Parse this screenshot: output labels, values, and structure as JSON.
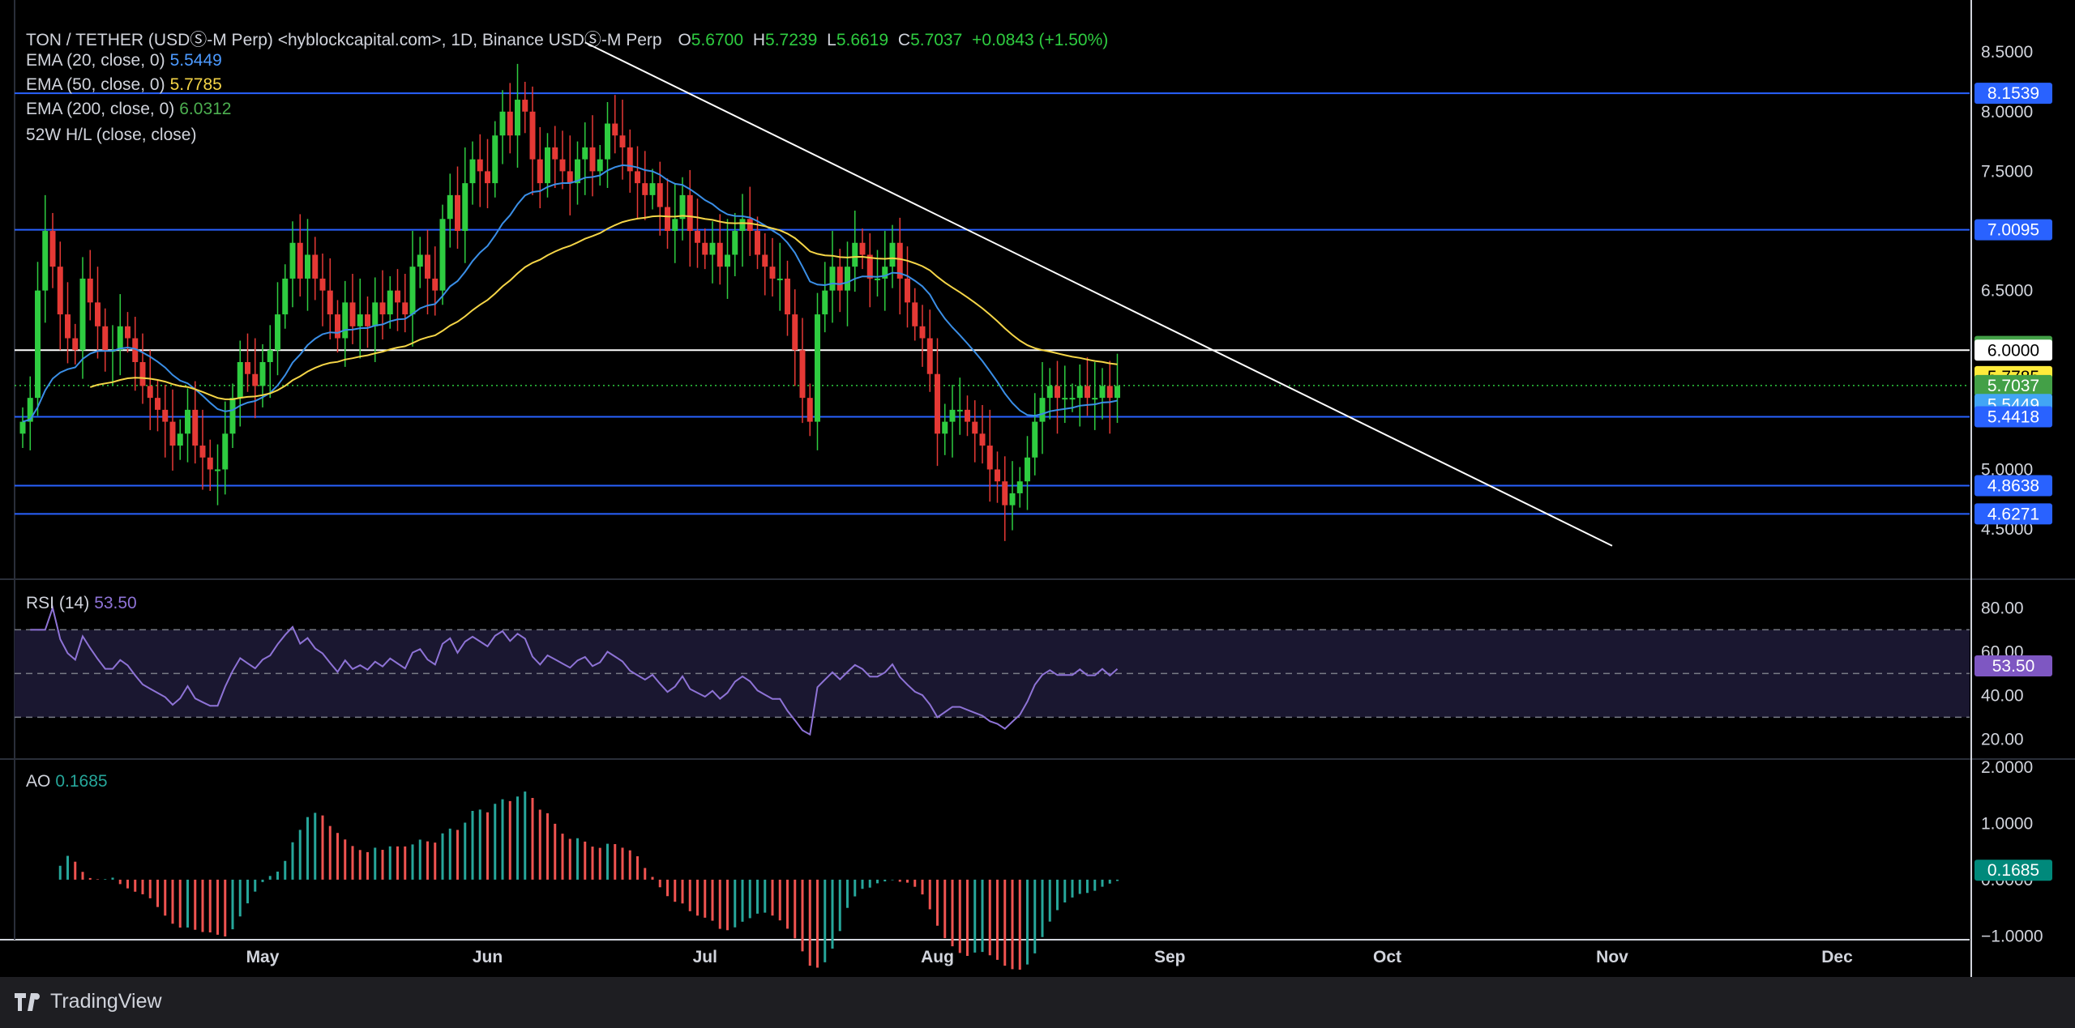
{
  "header": {
    "symbol": "TON / TETHER (USDⓈ-M Perp) <hyblockcapital.com>, 1D, Binance USDⓈ-M Perp",
    "o_label": "O",
    "o": "5.6700",
    "h_label": "H",
    "h": "5.7239",
    "l_label": "L",
    "l": "5.6619",
    "c_label": "C",
    "c": "5.7037",
    "change": "+0.0843 (+1.50%)"
  },
  "indicators": {
    "ema20": {
      "label": "EMA (20, close, 0)",
      "value": "5.5449",
      "color": "#4c9aff"
    },
    "ema50": {
      "label": "EMA (50, close, 0)",
      "value": "5.7785",
      "color": "#f5d547"
    },
    "ema200": {
      "label": "EMA (200, close, 0)",
      "value": "6.0312",
      "color": "#4caf50"
    },
    "hl52": {
      "label": "52W H/L (close, close)"
    },
    "rsi": {
      "label": "RSI (14)",
      "value": "53.50",
      "color": "#8e73d6"
    },
    "ao": {
      "label": "AO",
      "value": "0.1685",
      "color": "#26a69a"
    }
  },
  "colors": {
    "up": "#2ecc40",
    "down": "#e53935",
    "level": "#2962ff",
    "trend": "#ffffff",
    "ema20": "#3a8ee6",
    "ema50": "#f5d547",
    "rsi": "#8e73d6",
    "ao_up": "#26a69a",
    "ao_down": "#ef5350",
    "tag_blue": "#2962ff",
    "tag_green": "#43a047"
  },
  "price_axis": {
    "ticks": [
      "8.5000",
      "8.0000",
      "7.5000",
      "6.5000",
      "5.0000",
      "4.5000"
    ],
    "tick_values": [
      8.5,
      8.0,
      7.5,
      6.5,
      5.0,
      4.5
    ],
    "range": [
      4.1,
      8.8
    ]
  },
  "rsi_axis": {
    "ticks": [
      "80.00",
      "60.00",
      "40.00",
      "20.00"
    ],
    "tick_values": [
      80,
      60,
      40,
      20
    ],
    "range": [
      12,
      92
    ],
    "bands": [
      70,
      50,
      30
    ]
  },
  "ao_axis": {
    "ticks": [
      "2.0000",
      "1.0000",
      "0.0000",
      "−1.0000"
    ],
    "tick_values": [
      2,
      1,
      0,
      -1
    ],
    "range": [
      -1.7,
      2.1
    ]
  },
  "time_axis": {
    "labels": [
      "May",
      "Jun",
      "Jul",
      "Aug",
      "Sep",
      "Oct",
      "Nov",
      "Dec"
    ],
    "label_days": [
      32,
      62,
      91,
      122,
      153,
      182,
      212,
      242
    ]
  },
  "price_tags": [
    {
      "text": "8.1539",
      "value": 8.1539,
      "kind": "level"
    },
    {
      "text": "7.0095",
      "value": 7.0095,
      "kind": "level"
    },
    {
      "text": "6.0312",
      "value": 6.0312,
      "kind": "ema200"
    },
    {
      "text": "6.0000",
      "value": 6.0,
      "kind": "white"
    },
    {
      "text": "5.7785",
      "value": 5.7785,
      "kind": "ema50"
    },
    {
      "text": "5.7037",
      "value": 5.7037,
      "kind": "close"
    },
    {
      "text": "5.5449",
      "value": 5.5449,
      "kind": "ema20"
    },
    {
      "text": "5.4418",
      "value": 5.4418,
      "kind": "level"
    },
    {
      "text": "4.8638",
      "value": 4.8638,
      "kind": "level"
    },
    {
      "text": "4.6271",
      "value": 4.6271,
      "kind": "level"
    }
  ],
  "rsi_tag": "53.50",
  "ao_tag": "0.1685",
  "chart_data": {
    "type": "candlestick",
    "title": "TON / TETHER (USDⓈ-M Perp), 1D",
    "x_unit": "day index (0 = Apr 1)",
    "horizontal_levels": [
      8.1539,
      7.0095,
      6.0,
      5.4418,
      4.8638,
      4.6271
    ],
    "trendline": {
      "from": {
        "day": 75,
        "price": 8.58
      },
      "to": {
        "day": 212,
        "price": 4.36
      }
    },
    "closes": [
      5.4,
      5.6,
      6.5,
      7.0,
      6.7,
      6.3,
      6.1,
      6.0,
      6.6,
      6.4,
      6.2,
      6.0,
      6.0,
      6.2,
      6.1,
      5.9,
      5.7,
      5.6,
      5.5,
      5.4,
      5.2,
      5.3,
      5.5,
      5.2,
      5.1,
      5.0,
      5.0,
      5.3,
      5.6,
      5.9,
      5.8,
      5.7,
      5.9,
      6.0,
      6.3,
      6.6,
      6.9,
      6.6,
      6.8,
      6.6,
      6.5,
      6.3,
      6.1,
      6.4,
      6.2,
      6.3,
      6.2,
      6.4,
      6.3,
      6.5,
      6.4,
      6.3,
      6.7,
      6.8,
      6.6,
      6.5,
      7.1,
      7.3,
      7.0,
      7.4,
      7.6,
      7.5,
      7.4,
      7.8,
      8.0,
      7.8,
      8.1,
      8.0,
      7.6,
      7.4,
      7.7,
      7.6,
      7.5,
      7.4,
      7.6,
      7.7,
      7.5,
      7.6,
      7.9,
      7.8,
      7.7,
      7.5,
      7.4,
      7.3,
      7.4,
      7.2,
      7.0,
      7.1,
      7.3,
      7.0,
      6.9,
      6.8,
      6.9,
      6.7,
      6.8,
      7.0,
      7.1,
      7.0,
      6.8,
      6.7,
      6.6,
      6.6,
      6.3,
      6.0,
      5.6,
      5.4,
      6.3,
      6.5,
      6.7,
      6.5,
      6.7,
      6.9,
      6.8,
      6.6,
      6.6,
      6.7,
      6.9,
      6.6,
      6.4,
      6.2,
      6.1,
      5.8,
      5.3,
      5.4,
      5.5,
      5.5,
      5.4,
      5.3,
      5.2,
      5.0,
      4.9,
      4.7,
      4.8,
      4.9,
      5.1,
      5.4,
      5.6,
      5.7,
      5.6,
      5.6,
      5.6,
      5.7,
      5.6,
      5.6,
      5.7,
      5.6,
      5.7
    ]
  }
}
